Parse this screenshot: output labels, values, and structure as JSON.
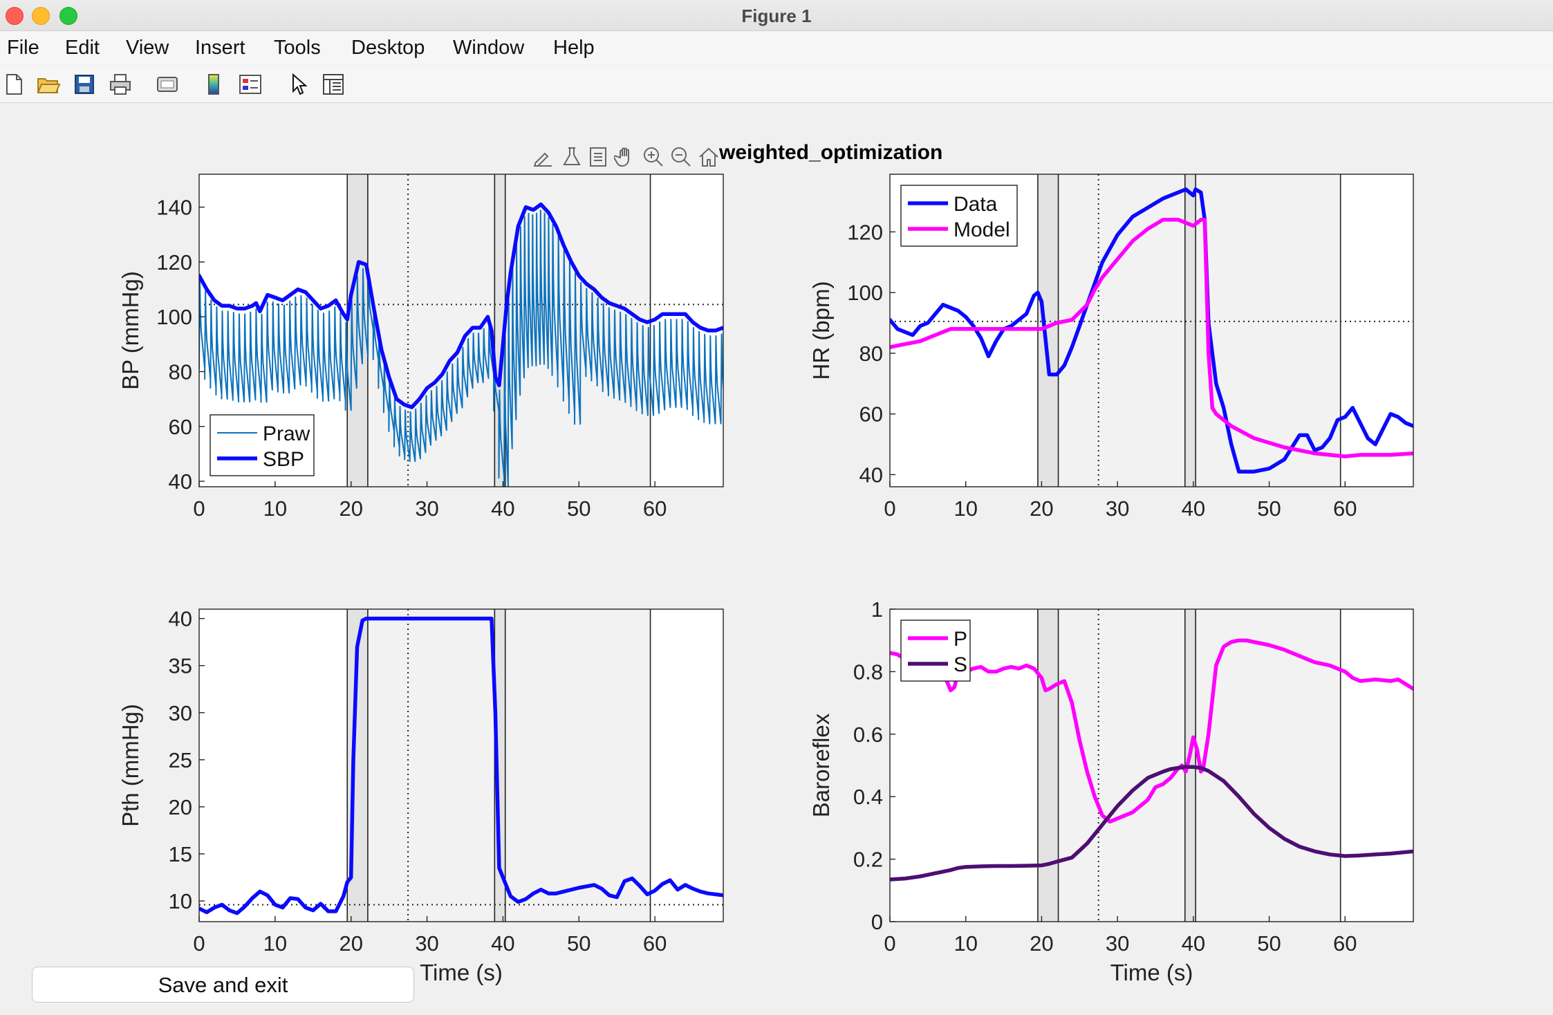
{
  "window": {
    "title": "Figure 1"
  },
  "menu": [
    "File",
    "Edit",
    "View",
    "Insert",
    "Tools",
    "Desktop",
    "Window",
    "Help"
  ],
  "toolbar_icons": [
    "new-figure-icon",
    "open-icon",
    "save-icon",
    "print-icon",
    "link-icon",
    "colorbar-icon",
    "legend-icon",
    "pointer-icon",
    "property-inspector-icon"
  ],
  "axes_toolbar_icons": [
    "brush-icon",
    "data-tips-icon",
    "export-icon",
    "pan-hand-icon",
    "zoom-in-icon",
    "zoom-out-icon",
    "home-icon"
  ],
  "figure_title": "weighted_optimization",
  "save_button": "Save and exit",
  "colors": {
    "data_blue": "#0a0aff",
    "praw_blue": "#0b72bd",
    "magenta": "#ff00ff",
    "purple": "#4d0f72",
    "shade": "#ececec"
  },
  "chart_data": [
    {
      "type": "line",
      "ylabel": "BP (mmHg)",
      "xlabel": "",
      "xlim": [
        0,
        69
      ],
      "ylim": [
        38,
        152
      ],
      "xticks": [
        0,
        10,
        20,
        30,
        40,
        50,
        60
      ],
      "yticks": [
        40,
        60,
        80,
        100,
        120,
        140
      ],
      "legend": {
        "position": "bottom-left",
        "entries": [
          "Praw",
          "SBP"
        ]
      },
      "shaded_regions": [
        [
          19.5,
          22.2
        ],
        [
          38.9,
          40.3
        ]
      ],
      "vlines": [
        19.5,
        22.2,
        27.5,
        38.9,
        40.3,
        59.4
      ],
      "hline": 104.5,
      "series": [
        {
          "name": "SBP",
          "style": "thick",
          "color": "#0a0aff",
          "x": [
            0,
            1,
            2,
            3,
            4,
            5,
            6,
            7,
            7.5,
            8,
            9,
            10,
            11,
            12,
            13,
            14,
            15,
            16,
            17,
            18,
            19,
            19.5,
            20,
            21,
            22,
            23,
            24,
            25,
            26,
            27,
            28,
            29,
            30,
            31,
            32,
            33,
            34,
            35,
            36,
            37,
            38,
            38.5,
            39,
            39.5,
            40,
            40.5,
            41,
            42,
            43,
            44,
            45,
            46,
            47,
            48,
            49,
            50,
            51,
            52,
            53,
            54,
            55,
            56,
            57,
            58,
            59,
            60,
            61,
            62,
            63,
            64,
            65,
            66,
            67,
            68,
            69
          ],
          "y": [
            115,
            110,
            106,
            104,
            104,
            103,
            103,
            104,
            105,
            102,
            108,
            107,
            106,
            108,
            110,
            109,
            106,
            103,
            104,
            106,
            101,
            99,
            108,
            120,
            119,
            103,
            88,
            78,
            70,
            68,
            67,
            70,
            74,
            76,
            79,
            84,
            87,
            93,
            96,
            96,
            100,
            95,
            78,
            75,
            90,
            105,
            116,
            133,
            140,
            139,
            141,
            138,
            133,
            126,
            120,
            115,
            112,
            110,
            107,
            105,
            104,
            103,
            101,
            99,
            98,
            99,
            101,
            101,
            101,
            101,
            98,
            96,
            95,
            95,
            96
          ]
        },
        {
          "name": "Praw",
          "style": "thin",
          "color": "#0b72bd",
          "x": [
            0,
            69
          ],
          "y": [
            85,
            85
          ]
        }
      ]
    },
    {
      "type": "line",
      "ylabel": "HR (bpm)",
      "xlabel": "",
      "xlim": [
        0,
        69
      ],
      "ylim": [
        36,
        139
      ],
      "xticks": [
        0,
        10,
        20,
        30,
        40,
        50,
        60
      ],
      "yticks": [
        40,
        60,
        80,
        100,
        120
      ],
      "legend": {
        "position": "top-left",
        "entries": [
          "Data",
          "Model"
        ]
      },
      "shaded_regions": [
        [
          19.5,
          22.2
        ],
        [
          38.9,
          40.3
        ]
      ],
      "vlines": [
        19.5,
        22.2,
        27.5,
        38.9,
        40.3,
        59.4
      ],
      "hline": 90.5,
      "series": [
        {
          "name": "Data",
          "color": "#0a0aff",
          "x": [
            0,
            1,
            2,
            3,
            4,
            5,
            6,
            7,
            8,
            9,
            10,
            11,
            12,
            13,
            14,
            15,
            16,
            17,
            18,
            19,
            19.5,
            20,
            21,
            22,
            23,
            24,
            25,
            26,
            27,
            28,
            30,
            32,
            34,
            36,
            38,
            39,
            39.5,
            40,
            40.3,
            41,
            41.5,
            42,
            43,
            44,
            45,
            46,
            47,
            48,
            50,
            52,
            53,
            54,
            55,
            56,
            57,
            58,
            59,
            60,
            61,
            62,
            63,
            64,
            65,
            66,
            67,
            68,
            69
          ],
          "y": [
            91,
            88,
            87,
            86,
            89,
            90,
            93,
            96,
            95,
            94,
            92,
            89,
            85,
            79,
            84,
            88,
            89,
            91,
            93,
            99,
            100,
            97,
            73,
            73,
            76,
            82,
            89,
            96,
            103,
            110,
            119,
            125,
            128,
            131,
            133,
            134,
            133,
            132,
            134,
            133,
            124,
            90,
            70,
            62,
            50,
            41,
            41,
            41,
            42,
            45,
            49,
            53,
            53,
            48,
            49,
            52,
            58,
            59,
            62,
            57,
            52,
            50,
            55,
            60,
            59,
            57,
            56
          ]
        },
        {
          "name": "Model",
          "color": "#ff00ff",
          "x": [
            0,
            2,
            4,
            6,
            8,
            9,
            10,
            14,
            18,
            20,
            22,
            24,
            26,
            27,
            28,
            30,
            32,
            34,
            36,
            38,
            39,
            40,
            41,
            41.5,
            42,
            42.5,
            43,
            45,
            48,
            52,
            56,
            60,
            62,
            64,
            66,
            69
          ],
          "y": [
            82,
            83,
            84,
            86,
            88,
            88,
            88,
            88,
            88,
            88,
            90,
            91,
            96,
            101,
            105,
            111,
            117,
            121,
            124,
            124,
            123,
            122,
            124,
            124,
            80,
            62,
            60,
            56,
            52,
            49,
            47,
            46,
            46.5,
            46.5,
            46.5,
            47
          ]
        }
      ]
    },
    {
      "type": "line",
      "ylabel": "Pth (mmHg)",
      "xlabel": "Time (s)",
      "xlim": [
        0,
        69
      ],
      "ylim": [
        7.8,
        41
      ],
      "xticks": [
        0,
        10,
        20,
        30,
        40,
        50,
        60
      ],
      "yticks": [
        10,
        15,
        20,
        25,
        30,
        35,
        40
      ],
      "shaded_regions": [
        [
          19.5,
          22.2
        ],
        [
          38.9,
          40.3
        ]
      ],
      "vlines": [
        19.5,
        22.2,
        27.5,
        38.9,
        40.3,
        59.4
      ],
      "hline": 9.6,
      "series": [
        {
          "name": "",
          "color": "#0a0aff",
          "x": [
            0,
            1,
            2,
            3,
            4,
            5,
            6,
            7,
            8,
            9,
            10,
            11,
            12,
            13,
            14,
            15,
            16,
            17,
            18,
            19,
            19.5,
            20,
            20.3,
            20.8,
            21.5,
            22,
            23,
            25,
            30,
            35,
            37,
            38,
            38.5,
            39,
            39.5,
            40,
            41,
            42,
            43,
            44,
            45,
            46,
            47,
            48,
            50,
            52,
            53,
            54,
            55,
            56,
            57,
            58,
            59,
            60,
            61,
            62,
            63,
            64,
            65,
            66,
            67,
            68,
            69
          ],
          "y": [
            9.2,
            8.8,
            9.3,
            9.6,
            9,
            8.7,
            9.4,
            10.3,
            11,
            10.6,
            9.6,
            9.3,
            10.3,
            10.2,
            9.3,
            9,
            9.7,
            8.9,
            8.9,
            10.5,
            12,
            12.5,
            25,
            37,
            39.8,
            40,
            40,
            40,
            40,
            40,
            40,
            40,
            40,
            30,
            13.5,
            12.5,
            10.5,
            9.9,
            10.2,
            10.8,
            11.2,
            10.8,
            10.8,
            11,
            11.4,
            11.7,
            11.3,
            10.6,
            10.4,
            12.1,
            12.4,
            11.6,
            10.7,
            11.1,
            11.8,
            12.2,
            11.2,
            11.7,
            11.3,
            11,
            10.8,
            10.7,
            10.6
          ]
        }
      ]
    },
    {
      "type": "line",
      "ylabel": "Baroreflex",
      "xlabel": "Time (s)",
      "xlim": [
        0,
        69
      ],
      "ylim": [
        0,
        1
      ],
      "xticks": [
        0,
        10,
        20,
        30,
        40,
        50,
        60
      ],
      "yticks": [
        0,
        0.2,
        0.4,
        0.6,
        0.8,
        1
      ],
      "ytick_labels": [
        "0",
        "0.2",
        "0.4",
        "0.6",
        "0.8",
        "1"
      ],
      "legend": {
        "position": "top-left",
        "entries": [
          "P",
          "S"
        ]
      },
      "shaded_regions": [
        [
          19.5,
          22.2
        ],
        [
          38.9,
          40.3
        ]
      ],
      "vlines": [
        19.5,
        22.2,
        27.5,
        38.9,
        40.3,
        59.4
      ],
      "series": [
        {
          "name": "P",
          "color": "#ff00ff",
          "x": [
            0,
            1,
            2,
            3,
            4,
            5,
            6,
            7,
            7.5,
            8,
            8.5,
            9,
            10,
            11,
            12,
            13,
            14,
            15,
            16,
            17,
            18,
            19,
            20,
            20.5,
            21,
            22,
            23,
            24,
            25,
            26,
            27,
            28,
            29,
            30,
            31,
            32,
            33,
            34,
            35,
            36,
            37,
            38,
            38.5,
            39,
            39.5,
            40,
            40.5,
            41,
            41.3,
            42,
            43,
            44,
            45,
            46,
            47,
            48,
            50,
            52,
            54,
            56,
            58,
            60,
            61,
            62,
            64,
            66,
            67,
            68,
            69
          ],
          "y": [
            0.86,
            0.855,
            0.84,
            0.83,
            0.81,
            0.8,
            0.79,
            0.78,
            0.77,
            0.74,
            0.75,
            0.8,
            0.8,
            0.81,
            0.815,
            0.8,
            0.8,
            0.81,
            0.815,
            0.81,
            0.82,
            0.81,
            0.78,
            0.74,
            0.745,
            0.76,
            0.77,
            0.7,
            0.58,
            0.48,
            0.4,
            0.34,
            0.32,
            0.33,
            0.34,
            0.35,
            0.37,
            0.39,
            0.43,
            0.44,
            0.46,
            0.49,
            0.5,
            0.48,
            0.53,
            0.59,
            0.55,
            0.48,
            0.49,
            0.6,
            0.82,
            0.88,
            0.895,
            0.9,
            0.9,
            0.895,
            0.885,
            0.87,
            0.85,
            0.83,
            0.82,
            0.8,
            0.78,
            0.77,
            0.775,
            0.77,
            0.775,
            0.76,
            0.745
          ]
        },
        {
          "name": "S",
          "color": "#4d0f72",
          "x": [
            0,
            2,
            4,
            6,
            8,
            9,
            10,
            12,
            14,
            16,
            18,
            20,
            21,
            22,
            24,
            26,
            28,
            30,
            32,
            34,
            36,
            37,
            38,
            39,
            40,
            41,
            42,
            44,
            46,
            48,
            50,
            52,
            54,
            56,
            58,
            60,
            62,
            64,
            66,
            69
          ],
          "y": [
            0.135,
            0.138,
            0.145,
            0.155,
            0.165,
            0.172,
            0.175,
            0.177,
            0.178,
            0.178,
            0.179,
            0.18,
            0.185,
            0.192,
            0.205,
            0.25,
            0.31,
            0.37,
            0.42,
            0.46,
            0.48,
            0.488,
            0.492,
            0.495,
            0.495,
            0.492,
            0.482,
            0.45,
            0.4,
            0.345,
            0.3,
            0.265,
            0.24,
            0.225,
            0.215,
            0.21,
            0.212,
            0.215,
            0.218,
            0.225
          ]
        }
      ]
    }
  ]
}
